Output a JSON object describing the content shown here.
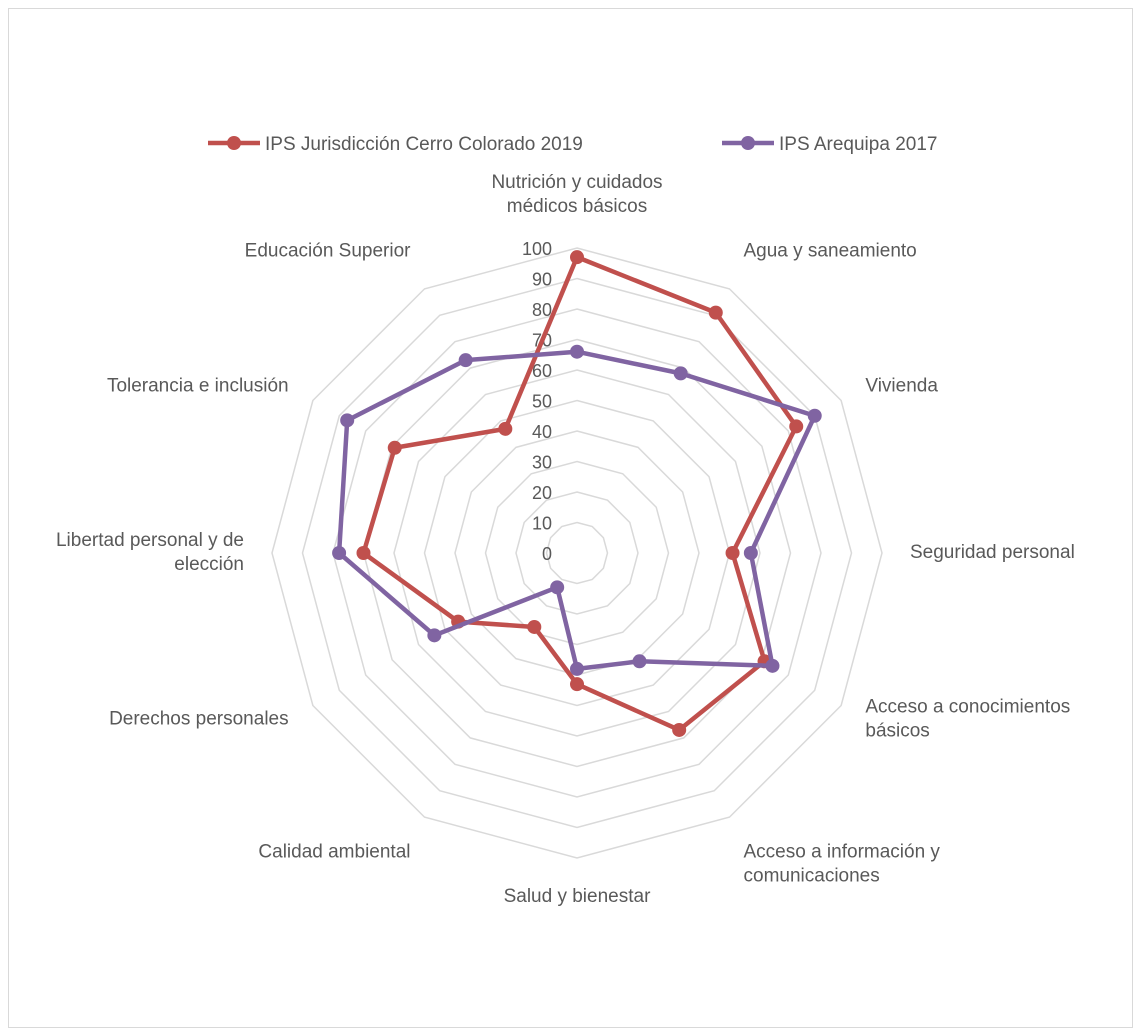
{
  "chart_data": {
    "type": "radar",
    "categories": [
      [
        "Nutrición y cuidados",
        "médicos básicos"
      ],
      [
        "Agua y saneamiento"
      ],
      [
        "Vivienda"
      ],
      [
        "Seguridad personal"
      ],
      [
        "Acceso a conocimientos",
        "básicos"
      ],
      [
        "Acceso a información y",
        "comunicaciones"
      ],
      [
        "Salud y bienestar"
      ],
      [
        "Calidad ambiental"
      ],
      [
        "Derechos personales"
      ],
      [
        "Libertad personal y de",
        "elección"
      ],
      [
        "Tolerancia e inclusión"
      ],
      [
        "Educación Superior"
      ]
    ],
    "rlim": [
      0,
      100
    ],
    "ticks": [
      "0",
      "10",
      "20",
      "30",
      "40",
      "50",
      "60",
      "70",
      "80",
      "90",
      "100"
    ],
    "grid": true,
    "legend": "top",
    "series": [
      {
        "name": "IPS Jurisdicción Cerro Colorado 2019",
        "color": "#c0504d",
        "values": [
          97,
          91,
          83,
          51,
          71,
          67,
          43,
          28,
          45,
          70,
          69,
          47
        ]
      },
      {
        "name": "IPS Arequipa 2017",
        "color": "#8064a2",
        "values": [
          66,
          68,
          90,
          57,
          74,
          41,
          38,
          13,
          54,
          78,
          87,
          73
        ]
      }
    ]
  }
}
